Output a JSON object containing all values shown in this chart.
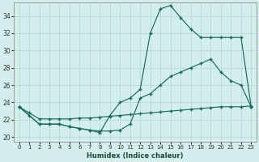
{
  "xlabel": "Humidex (Indice chaleur)",
  "bg_color": "#d4eeee",
  "grid_color": "#b8d8d8",
  "line_color": "#1a6b5a",
  "xlim": [
    -0.5,
    23.5
  ],
  "ylim": [
    19.5,
    35.5
  ],
  "xticks": [
    0,
    1,
    2,
    3,
    4,
    5,
    6,
    7,
    8,
    9,
    10,
    11,
    12,
    13,
    14,
    15,
    16,
    17,
    18,
    19,
    20,
    21,
    22,
    23
  ],
  "yticks": [
    20,
    22,
    24,
    26,
    28,
    30,
    32,
    34
  ],
  "line1_x": [
    0,
    1,
    2,
    3,
    4,
    5,
    6,
    7,
    8,
    9,
    10,
    11,
    12,
    13,
    14,
    15,
    16,
    17,
    18,
    19,
    20,
    21,
    22,
    23
  ],
  "line1_y": [
    23.5,
    22.8,
    22.1,
    22.1,
    22.1,
    22.1,
    22.2,
    22.2,
    22.3,
    22.4,
    22.5,
    22.6,
    22.7,
    22.8,
    22.9,
    23.0,
    23.1,
    23.2,
    23.3,
    23.4,
    23.5,
    23.5,
    23.5,
    23.6
  ],
  "line2_x": [
    0,
    1,
    2,
    3,
    4,
    5,
    6,
    7,
    8,
    9,
    10,
    11,
    12,
    13,
    14,
    15,
    16,
    17,
    18,
    19,
    20,
    21,
    22,
    23
  ],
  "line2_y": [
    23.5,
    22.5,
    21.5,
    21.5,
    21.5,
    21.2,
    21.0,
    20.8,
    20.7,
    20.7,
    20.8,
    21.5,
    24.5,
    25.0,
    26.0,
    27.0,
    27.5,
    28.0,
    28.5,
    29.0,
    27.5,
    26.5,
    26.0,
    23.5
  ],
  "line3_x": [
    0,
    2,
    3,
    4,
    5,
    6,
    7,
    8,
    9,
    10,
    11,
    12,
    13,
    14,
    15,
    16,
    17,
    18,
    19,
    20,
    21,
    22,
    23
  ],
  "line3_y": [
    23.5,
    21.5,
    21.5,
    21.5,
    21.2,
    21.0,
    20.8,
    20.5,
    22.5,
    24.0,
    24.5,
    25.5,
    32.0,
    34.8,
    35.2,
    33.8,
    32.5,
    31.5,
    31.5,
    31.5,
    31.5,
    31.5,
    23.5
  ]
}
